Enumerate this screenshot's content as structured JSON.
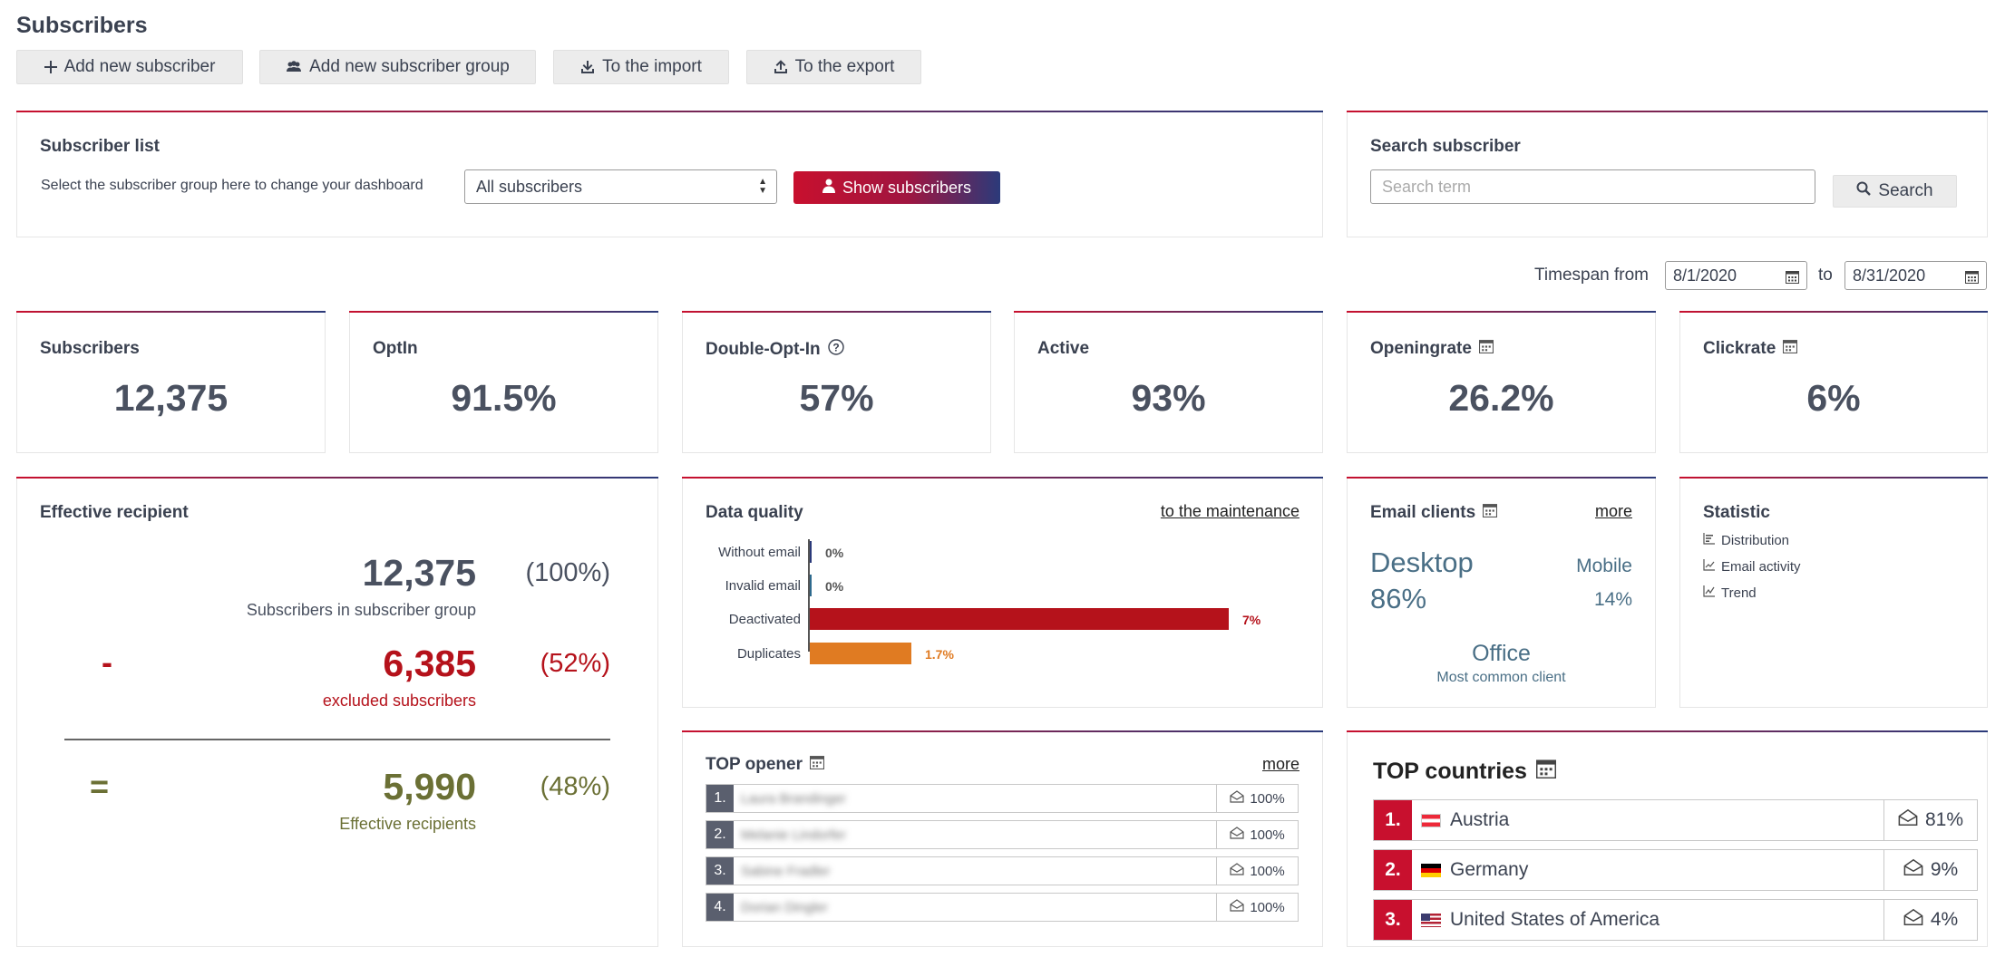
{
  "page": {
    "title": "Subscribers"
  },
  "toolbar": {
    "add_subscriber": "Add new subscriber",
    "add_group": "Add new subscriber group",
    "import": "To the import",
    "export": "To the export"
  },
  "subscriber_list": {
    "title": "Subscriber list",
    "hint": "Select the subscriber group here to change your dashboard",
    "selected_group": "All subscribers",
    "show_button": "Show subscribers"
  },
  "search": {
    "title": "Search subscriber",
    "placeholder": "Search term",
    "button": "Search"
  },
  "timespan": {
    "label_from": "Timespan from",
    "from": "8/1/2020",
    "label_to": "to",
    "to": "8/31/2020"
  },
  "kpis": [
    {
      "label": "Subscribers",
      "value": "12,375"
    },
    {
      "label": "OptIn",
      "value": "91.5%"
    },
    {
      "label": "Double-Opt-In",
      "value": "57%"
    },
    {
      "label": "Active",
      "value": "93%"
    },
    {
      "label": "Openingrate",
      "value": "26.2%"
    },
    {
      "label": "Clickrate",
      "value": "6%"
    }
  ],
  "effective": {
    "title": "Effective recipient",
    "total_value": "12,375",
    "total_pct": "(100%)",
    "total_label": "Subscribers in subscriber group",
    "minus_sign": "-",
    "excluded_value": "6,385",
    "excluded_pct": "(52%)",
    "excluded_label": "excluded subscribers",
    "equals_sign": "=",
    "effective_value": "5,990",
    "effective_pct": "(48%)",
    "effective_label": "Effective recipients"
  },
  "data_quality": {
    "title": "Data quality",
    "link": "to the maintenance",
    "rows": [
      {
        "label": "Without email",
        "pct_text": "0%",
        "pct": 0,
        "color": "#2b3a7a"
      },
      {
        "label": "Invalid email",
        "pct_text": "0%",
        "pct": 0,
        "color": "#2e6a8e"
      },
      {
        "label": "Deactivated",
        "pct_text": "7%",
        "pct": 7,
        "color": "#b5121b"
      },
      {
        "label": "Duplicates",
        "pct_text": "1.7%",
        "pct": 1.7,
        "color": "#e07b22"
      }
    ]
  },
  "email_clients": {
    "title": "Email clients",
    "more": "more",
    "desktop_label": "Desktop",
    "desktop_pct": "86%",
    "mobile_label": "Mobile",
    "mobile_pct": "14%",
    "common_client": "Office",
    "common_label": "Most common client"
  },
  "statistic": {
    "title": "Statistic",
    "items": [
      "Distribution",
      "Email activity",
      "Trend"
    ]
  },
  "top_opener": {
    "title": "TOP opener",
    "more": "more",
    "rows": [
      {
        "rank": "1.",
        "name": "Laura Brandinger",
        "pct": "100%"
      },
      {
        "rank": "2.",
        "name": "Melanie Lindorfer",
        "pct": "100%"
      },
      {
        "rank": "3.",
        "name": "Sabine Fradler",
        "pct": "100%"
      },
      {
        "rank": "4.",
        "name": "Dorian Dingler",
        "pct": "100%"
      }
    ]
  },
  "top_countries": {
    "title": "TOP countries",
    "rows": [
      {
        "rank": "1.",
        "name": "Austria",
        "pct": "81%"
      },
      {
        "rank": "2.",
        "name": "Germany",
        "pct": "9%"
      },
      {
        "rank": "3.",
        "name": "United States of America",
        "pct": "4%"
      }
    ]
  },
  "colors": {
    "brand_red": "#c8102e",
    "brand_blue": "#2b3a7a",
    "excluded_red": "#b5121b",
    "effective_olive": "#6b7035",
    "client_teal": "#4a6f86"
  }
}
